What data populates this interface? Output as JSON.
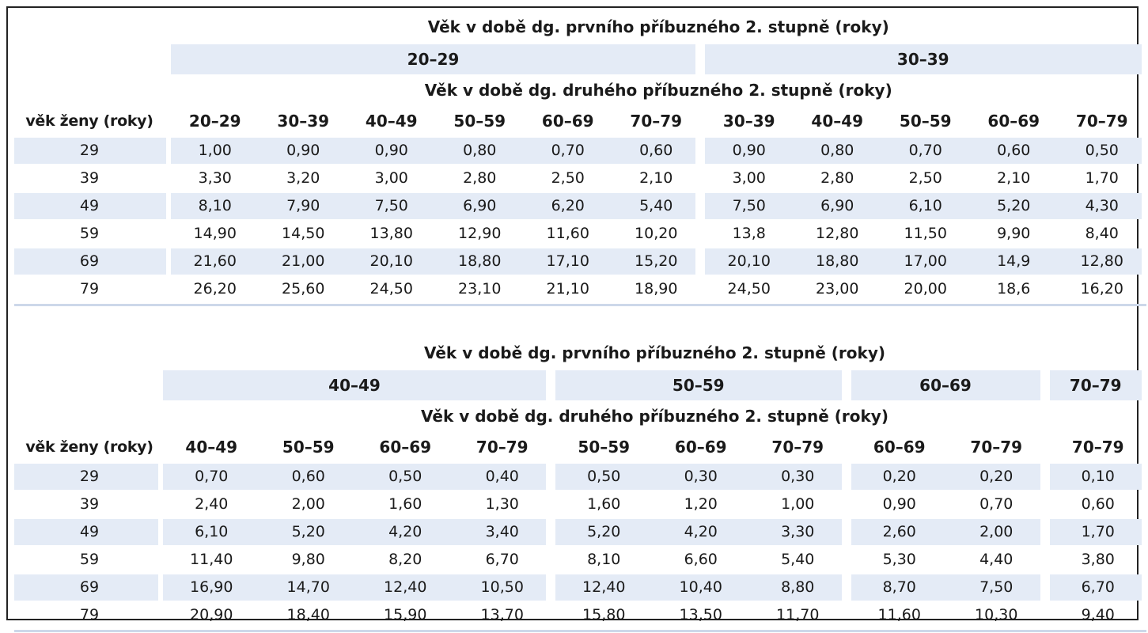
{
  "table1": {
    "header_first": "Věk v době dg. prvního příbuzného 2. stupně (roky)",
    "header_second": "Věk v době dg. druhého příbuzného 2. stupně (roky)",
    "row_header_label": "věk ženy (roky)",
    "groups": [
      {
        "label": "20–29",
        "columns": [
          "20–29",
          "30–39",
          "40–49",
          "50–59",
          "60–69",
          "70–79"
        ]
      },
      {
        "label": "30–39",
        "columns": [
          "30–39",
          "40–49",
          "50–59",
          "60–69",
          "70–79"
        ]
      }
    ],
    "rows": [
      {
        "age": "29",
        "values": [
          "1,00",
          "0,90",
          "0,90",
          "0,80",
          "0,70",
          "0,60",
          "0,90",
          "0,80",
          "0,70",
          "0,60",
          "0,50"
        ]
      },
      {
        "age": "39",
        "values": [
          "3,30",
          "3,20",
          "3,00",
          "2,80",
          "2,50",
          "2,10",
          "3,00",
          "2,80",
          "2,50",
          "2,10",
          "1,70"
        ]
      },
      {
        "age": "49",
        "values": [
          "8,10",
          "7,90",
          "7,50",
          "6,90",
          "6,20",
          "5,40",
          "7,50",
          "6,90",
          "6,10",
          "5,20",
          "4,30"
        ]
      },
      {
        "age": "59",
        "values": [
          "14,90",
          "14,50",
          "13,80",
          "12,90",
          "11,60",
          "10,20",
          "13,8",
          "12,80",
          "11,50",
          "9,90",
          "8,40"
        ]
      },
      {
        "age": "69",
        "values": [
          "21,60",
          "21,00",
          "20,10",
          "18,80",
          "17,10",
          "15,20",
          "20,10",
          "18,80",
          "17,00",
          "14,9",
          "12,80"
        ]
      },
      {
        "age": "79",
        "values": [
          "26,20",
          "25,60",
          "24,50",
          "23,10",
          "21,10",
          "18,90",
          "24,50",
          "23,00",
          "20,00",
          "18,6",
          "16,20"
        ]
      }
    ]
  },
  "table2": {
    "header_first": "Věk v době dg. prvního příbuzného 2. stupně (roky)",
    "header_second": "Věk v době dg. druhého příbuzného 2. stupně (roky)",
    "row_header_label": "věk ženy (roky)",
    "groups": [
      {
        "label": "40–49",
        "columns": [
          "40–49",
          "50–59",
          "60–69",
          "70–79"
        ]
      },
      {
        "label": "50–59",
        "columns": [
          "50–59",
          "60–69",
          "70–79"
        ]
      },
      {
        "label": "60–69",
        "columns": [
          "60–69",
          "70–79"
        ]
      },
      {
        "label": "70–79",
        "columns": [
          "70–79"
        ]
      }
    ],
    "rows": [
      {
        "age": "29",
        "values": [
          "0,70",
          "0,60",
          "0,50",
          "0,40",
          "0,50",
          "0,30",
          "0,30",
          "0,20",
          "0,20",
          "0,10"
        ]
      },
      {
        "age": "39",
        "values": [
          "2,40",
          "2,00",
          "1,60",
          "1,30",
          "1,60",
          "1,20",
          "1,00",
          "0,90",
          "0,70",
          "0,60"
        ]
      },
      {
        "age": "49",
        "values": [
          "6,10",
          "5,20",
          "4,20",
          "3,40",
          "5,20",
          "4,20",
          "3,30",
          "2,60",
          "2,00",
          "1,70"
        ]
      },
      {
        "age": "59",
        "values": [
          "11,40",
          "9,80",
          "8,20",
          "6,70",
          "8,10",
          "6,60",
          "5,40",
          "5,30",
          "4,40",
          "3,80"
        ]
      },
      {
        "age": "69",
        "values": [
          "16,90",
          "14,70",
          "12,40",
          "10,50",
          "12,40",
          "10,40",
          "8,80",
          "8,70",
          "7,50",
          "6,70"
        ]
      },
      {
        "age": "79",
        "values": [
          "20,90",
          "18,40",
          "15,90",
          "13,70",
          "15,80",
          "13,50",
          "11,70",
          "11,60",
          "10,30",
          "9,40"
        ]
      }
    ]
  },
  "colors": {
    "band": "#e4ebf6",
    "text": "#1a1a1a",
    "border": "#222222"
  }
}
